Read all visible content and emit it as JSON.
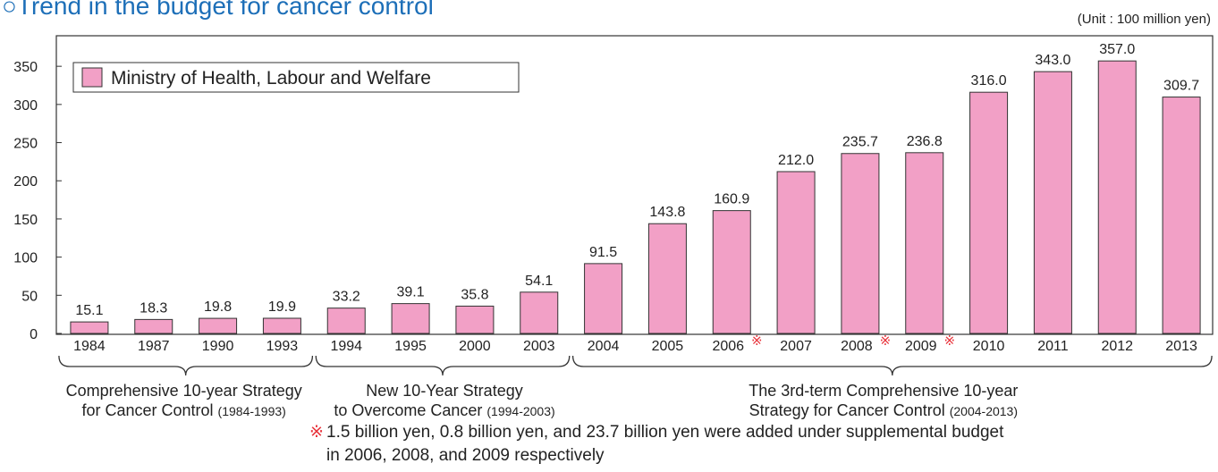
{
  "chart_data": {
    "type": "bar",
    "title": "○Trend in the budget for cancer control",
    "unit": "(Unit : 100 million yen)",
    "categories": [
      "1984",
      "1987",
      "1990",
      "1993",
      "1994",
      "1995",
      "2000",
      "2003",
      "2004",
      "2005",
      "2006",
      "2007",
      "2008",
      "2009",
      "2010",
      "2011",
      "2012",
      "2013"
    ],
    "series": [
      {
        "name": "Ministry of Health, Labour and Welfare",
        "color": "#f2a0c6",
        "values": [
          15.1,
          18.3,
          19.8,
          19.9,
          33.2,
          39.1,
          35.8,
          54.1,
          91.5,
          143.8,
          160.9,
          212.0,
          235.7,
          236.8,
          316.0,
          343.0,
          357.0,
          309.7
        ],
        "value_labels": [
          "15.1",
          "18.3",
          "19.8",
          "19.9",
          "33.2",
          "39.1",
          "35.8",
          "54.1",
          "91.5",
          "143.8",
          "160.9",
          "212.0",
          "235.7",
          "236.8",
          "316.0",
          "343.0",
          "357.0",
          "309.7"
        ]
      }
    ],
    "ylim": [
      0,
      390
    ],
    "yticks": [
      0,
      50,
      100,
      150,
      200,
      250,
      300,
      350
    ],
    "grid": false,
    "legend": "top-left",
    "annotations": [
      {
        "category": "2006",
        "text": "※"
      },
      {
        "category": "2008",
        "text": "※"
      },
      {
        "category": "2009",
        "text": "※"
      }
    ],
    "groups": [
      {
        "from": "1984",
        "to": "1993",
        "lines": [
          "Comprehensive 10-year Strategy",
          "for Cancer Control"
        ],
        "period": "(1984-1993)"
      },
      {
        "from": "1994",
        "to": "2003",
        "lines": [
          "New 10-Year Strategy",
          "to Overcome Cancer"
        ],
        "period": "(1994-2003)"
      },
      {
        "from": "2004",
        "to": "2013",
        "lines": [
          "The 3rd-term Comprehensive 10-year",
          "Strategy for Cancer Control"
        ],
        "period": "(2004-2013)"
      }
    ],
    "footnote": {
      "mark": "※",
      "lines": [
        "1.5 billion yen, 0.8 billion yen, and 23.7 billion yen were added under supplemental budget",
        "in 2006, 2008, and 2009 respectively"
      ]
    }
  }
}
